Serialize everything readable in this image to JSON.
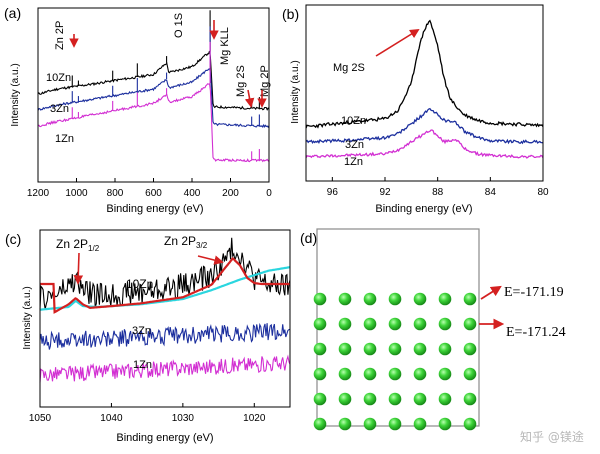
{
  "chart_data": [
    {
      "panel": "(a)",
      "type": "line",
      "xlabel": "Binding energy (eV)",
      "ylabel": "Intensity (a.u.)",
      "xlim": [
        1200,
        0
      ],
      "x_ticks": [
        1200,
        1000,
        800,
        600,
        400,
        200,
        0
      ],
      "series": [
        {
          "name": "10Zn",
          "color": "#000000",
          "x": [
            1200,
            1100,
            1000,
            900,
            800,
            700,
            600,
            532,
            520,
            400,
            306,
            290,
            200,
            100,
            0
          ],
          "values": [
            15.2,
            16.3,
            16.9,
            17.5,
            18.2,
            18.8,
            19.5,
            22.0,
            19.9,
            21.2,
            24.5,
            12.4,
            12.3,
            12.1,
            12.0
          ]
        },
        {
          "name": "3Zn",
          "color": "#1c2f9e",
          "x": [
            1200,
            1100,
            1000,
            900,
            800,
            700,
            600,
            532,
            520,
            400,
            306,
            290,
            200,
            100,
            0
          ],
          "values": [
            11.8,
            12.8,
            13.5,
            14.2,
            14.9,
            15.6,
            16.3,
            18.4,
            16.6,
            17.8,
            21.0,
            8.6,
            8.5,
            8.3,
            8.2
          ]
        },
        {
          "name": "1Zn",
          "color": "#d22fd2",
          "x": [
            1200,
            1100,
            1000,
            900,
            800,
            700,
            600,
            532,
            520,
            400,
            306,
            290,
            200,
            100,
            0
          ],
          "values": [
            8.2,
            9.2,
            10.0,
            10.8,
            11.6,
            12.4,
            13.2,
            15.0,
            13.4,
            14.6,
            17.6,
            0.8,
            0.8,
            0.7,
            0.7
          ]
        }
      ],
      "annotations": [
        "Zn 2P",
        "O 1S",
        "Mg KLL",
        "Mg 2S",
        "Mg 2P"
      ]
    },
    {
      "panel": "(b)",
      "type": "line",
      "xlabel": "Binding energy (eV)",
      "ylabel": "Intensity (a.u.)",
      "xlim": [
        98,
        80
      ],
      "x_ticks": [
        96,
        92,
        88,
        84,
        80
      ],
      "series": [
        {
          "name": "10Zn",
          "color": "#000000",
          "x": [
            98,
            95,
            92,
            91,
            90,
            89.5,
            89,
            88.6,
            88,
            87.5,
            87,
            86.5,
            86,
            85,
            84,
            82,
            80
          ],
          "values": [
            3.0,
            3.3,
            3.6,
            4.2,
            6.2,
            8.6,
            10.2,
            10.9,
            9.0,
            6.5,
            5.0,
            4.4,
            3.9,
            3.5,
            3.3,
            3.2,
            3.1
          ]
        },
        {
          "name": "3Zn",
          "color": "#1c2f9e",
          "x": [
            98,
            95,
            92,
            91,
            90,
            89,
            88.6,
            88,
            87.5,
            87,
            86.6,
            86,
            85,
            84,
            82,
            80
          ],
          "values": [
            1.9,
            2.0,
            2.2,
            2.5,
            3.2,
            4.0,
            4.3,
            3.9,
            3.5,
            3.4,
            3.3,
            2.7,
            2.2,
            2.0,
            1.9,
            1.9
          ]
        },
        {
          "name": "1Zn",
          "color": "#d22fd2",
          "x": [
            98,
            95,
            92,
            91,
            90,
            89,
            88.5,
            88,
            87.5,
            87,
            86.6,
            86,
            85,
            84,
            82,
            80
          ],
          "values": [
            0.8,
            0.9,
            1.0,
            1.3,
            1.9,
            2.5,
            2.8,
            2.3,
            1.9,
            2.0,
            2.1,
            1.4,
            1.0,
            0.9,
            0.8,
            0.8
          ]
        }
      ],
      "annotations": [
        "Mg 2S"
      ]
    },
    {
      "panel": "(c)",
      "type": "line",
      "xlabel": "Binding energy (eV)",
      "ylabel": "Intensity (a.u.)",
      "xlim": [
        1050,
        1015
      ],
      "x_ticks": [
        1050,
        1040,
        1030,
        1020
      ],
      "series": [
        {
          "name": "10Zn",
          "color": "#000000",
          "x": [
            1050,
            1048,
            1046,
            1045,
            1044,
            1042,
            1038,
            1034,
            1030,
            1026,
            1024,
            1023,
            1022,
            1020,
            1018,
            1015
          ],
          "values": [
            5.1,
            5.3,
            5.8,
            6.2,
            5.6,
            5.3,
            5.4,
            5.6,
            5.9,
            6.4,
            7.3,
            8.0,
            7.6,
            6.3,
            5.9,
            5.8
          ]
        },
        {
          "name": "3Zn",
          "color": "#1c2f9e",
          "x": [
            1050,
            1015
          ],
          "values": [
            2.7,
            3.3
          ]
        },
        {
          "name": "1Zn",
          "color": "#d22fd2",
          "x": [
            1050,
            1015
          ],
          "values": [
            0.8,
            1.5
          ]
        },
        {
          "name": "",
          "color": "#2bd6df",
          "x": [
            1050,
            1046,
            1045,
            1044,
            1042,
            1036,
            1030,
            1026,
            1022,
            1018,
            1015
          ],
          "values": [
            4.5,
            4.65,
            5.0,
            4.7,
            4.65,
            4.8,
            5.1,
            5.6,
            6.2,
            6.7,
            6.9
          ]
        },
        {
          "name": "",
          "color": "#d42020",
          "x": [
            1048,
            1046,
            1045,
            1044,
            1043,
            1040,
            1036,
            1030,
            1026,
            1024,
            1023,
            1022,
            1021,
            1020,
            1019
          ],
          "values": [
            4.35,
            4.8,
            5.15,
            4.8,
            4.6,
            4.7,
            4.85,
            5.2,
            5.9,
            6.9,
            7.4,
            7.0,
            6.3,
            6.0,
            5.95
          ]
        }
      ],
      "annotations": [
        "Zn 2P1/2",
        "Zn 2P3/2"
      ]
    },
    {
      "panel": "(d)",
      "type": "scatter",
      "grid": {
        "rows": 6,
        "cols": 7
      },
      "annotations": [
        "E=-171.19",
        "E=-171.24"
      ]
    }
  ],
  "panels": {
    "a": {
      "label": "(a)",
      "xlabel": "Binding energy (eV)",
      "ylabel": "Intensity (a.u.)",
      "ticks": [
        "1200",
        "1000",
        "800",
        "600",
        "400",
        "200",
        "0"
      ],
      "peaks": {
        "zn2p": "Zn 2P",
        "o1s": "O 1S",
        "mgkll": "Mg KLL",
        "mg2s": "Mg 2S",
        "mg2p": "Mg 2P"
      },
      "series_labels": {
        "s10": "10Zn",
        "s3": "3Zn",
        "s1": "1Zn"
      }
    },
    "b": {
      "label": "(b)",
      "xlabel": "Binding energy (eV)",
      "ylabel": "Intensity (a.u.)",
      "ticks": [
        "96",
        "92",
        "88",
        "84",
        "80"
      ],
      "peak": "Mg 2S",
      "series_labels": {
        "s10": "10Zn",
        "s3": "3Zn",
        "s1": "1Zn"
      }
    },
    "c": {
      "label": "(c)",
      "xlabel": "Binding energy (eV)",
      "ylabel": "Intensity (a.u.)",
      "ticks": [
        "1050",
        "1040",
        "1030",
        "1020"
      ],
      "peak1_main": "Zn 2P",
      "peak1_sub": "1/2",
      "peak2_main": "Zn 2P",
      "peak2_sub": "3/2",
      "series_labels": {
        "s10": "10Zn",
        "s3": "3Zn",
        "s1": "1Zn"
      }
    },
    "d": {
      "label": "(d)",
      "energy1": "E=-171.19",
      "energy2": "E=-171.24"
    }
  },
  "watermark": "知乎 @镁途",
  "colors": {
    "black": "#000000",
    "blue": "#1c2f9e",
    "magenta": "#d22fd2",
    "cyan": "#2bd6df",
    "red": "#d42020",
    "atom": "#2fc22f"
  }
}
